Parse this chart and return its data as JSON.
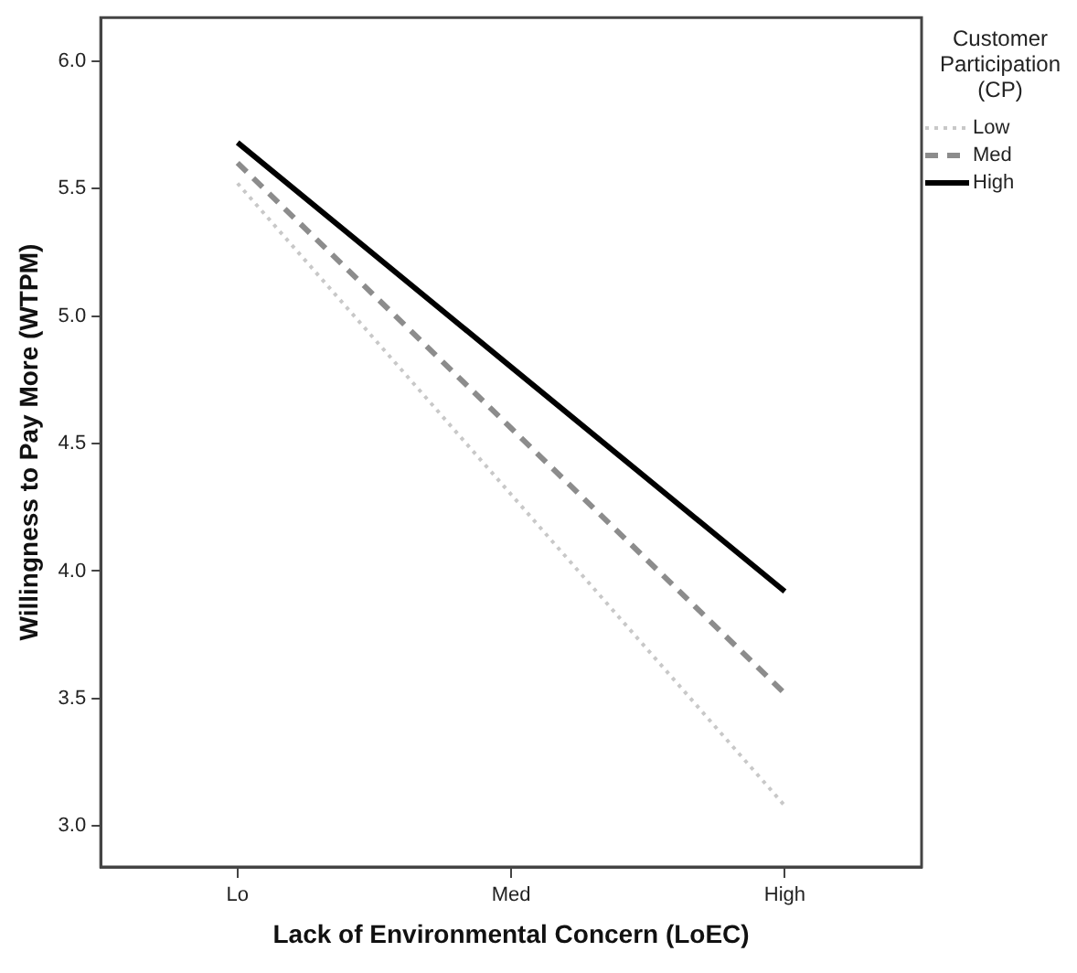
{
  "chart_data": {
    "type": "line",
    "xlabel": "Lack of Environmental Concern (LoEC)",
    "ylabel": "Willingness to Pay More (WTPM)",
    "legend_title": "Customer Participation (CP)",
    "legend": "top right",
    "marker": "none",
    "categories": [
      "Lo",
      "Med",
      "High"
    ],
    "series": [
      {
        "name": "Low",
        "color": "#c8c8c8",
        "line_style": "dotted",
        "values": [
          5.52,
          4.3,
          3.08
        ]
      },
      {
        "name": "Med",
        "color": "#8c8c8c",
        "line_style": "dashed",
        "values": [
          5.6,
          4.56,
          3.52
        ]
      },
      {
        "name": "High",
        "color": "#000000",
        "line_style": "solid",
        "values": [
          5.68,
          4.8,
          3.92
        ]
      }
    ],
    "ylim": [
      2.84,
      6.17
    ],
    "yticks": [
      {
        "value": 3,
        "label": "3.0"
      },
      3.5,
      {
        "value": 4,
        "label": "4.0"
      },
      4.5,
      {
        "value": 5,
        "label": "5.0"
      },
      5.5,
      {
        "value": 6,
        "label": "6.0"
      }
    ]
  }
}
